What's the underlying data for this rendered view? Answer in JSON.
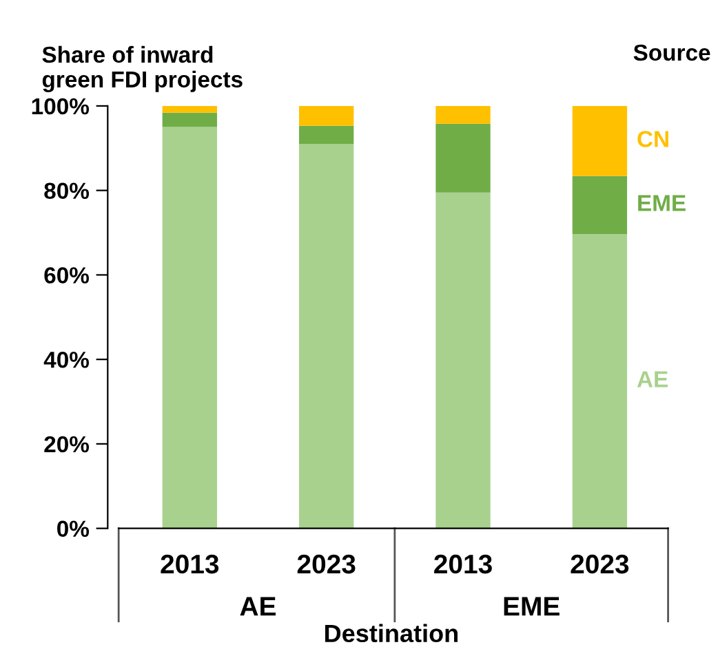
{
  "chart_data": {
    "type": "bar",
    "stacked": true,
    "title": "Share of inward\ngreen FDI projects",
    "legend_title": "Source",
    "xlabel": "Destination",
    "categories": [
      "2013",
      "2023",
      "2013",
      "2023"
    ],
    "annotations": [
      "AE",
      "EME"
    ],
    "series": [
      {
        "name": "AE",
        "color": "#a9d18e",
        "values": [
          95,
          91,
          79.5,
          69.7
        ]
      },
      {
        "name": "EME",
        "color": "#70ad47",
        "values": [
          3.4,
          4.3,
          16.3,
          13.7
        ]
      },
      {
        "name": "CN",
        "color": "#ffc000",
        "values": [
          1.6,
          4.7,
          4.2,
          16.6
        ]
      }
    ],
    "ylim": [
      0,
      100
    ],
    "yticks": [
      {
        "value": 0,
        "label": "0%"
      },
      {
        "value": 20,
        "label": "20%"
      },
      {
        "value": 40,
        "label": "40%"
      },
      {
        "value": 60,
        "label": "60%"
      },
      {
        "value": 80,
        "label": "80%"
      },
      {
        "value": 100,
        "label": "100%"
      }
    ],
    "grid": false,
    "legend": false
  }
}
